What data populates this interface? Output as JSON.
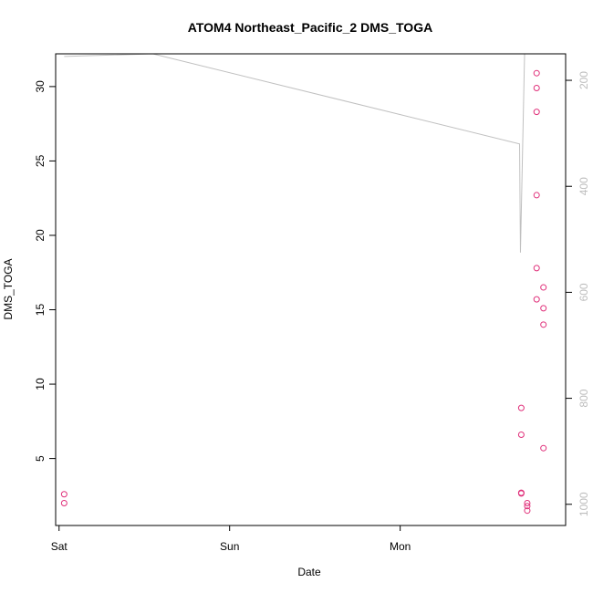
{
  "chart_data": {
    "type": "scatter",
    "title": "ATOM4 Northeast_Pacific_2 DMS_TOGA",
    "xlabel": "Date",
    "ylabel": "DMS_TOGA",
    "x_ticks": [
      "Sat",
      "Sun",
      "Mon"
    ],
    "y_ticks": [
      "5",
      "10",
      "15",
      "20",
      "25",
      "30"
    ],
    "y_ticks_values": [
      5,
      10,
      15,
      20,
      25,
      30
    ],
    "y_right_ticks": [
      "200",
      "400",
      "600",
      "800",
      "1000"
    ],
    "y_right_ticks_values": [
      200,
      400,
      600,
      800,
      1000
    ],
    "y_right_axis_reversed": true,
    "xlim_days": [
      -0.02,
      2.97
    ],
    "ylim": [
      0.5,
      32.2
    ],
    "y_right_lim": [
      1040,
      150
    ],
    "grid": false,
    "series": [
      {
        "type": "scatter",
        "color": "#e0307a",
        "points": [
          {
            "x": 0.03,
            "y": 2.6
          },
          {
            "x": 0.03,
            "y": 2.0
          },
          {
            "x": 2.71,
            "y": 8.4
          },
          {
            "x": 2.71,
            "y": 6.6
          },
          {
            "x": 2.71,
            "y": 2.7
          },
          {
            "x": 2.71,
            "y": 2.65
          },
          {
            "x": 2.745,
            "y": 2.0
          },
          {
            "x": 2.745,
            "y": 1.8
          },
          {
            "x": 2.745,
            "y": 1.5
          },
          {
            "x": 2.8,
            "y": 30.9
          },
          {
            "x": 2.8,
            "y": 29.9
          },
          {
            "x": 2.8,
            "y": 28.3
          },
          {
            "x": 2.8,
            "y": 22.7
          },
          {
            "x": 2.8,
            "y": 17.8
          },
          {
            "x": 2.8,
            "y": 15.7
          },
          {
            "x": 2.84,
            "y": 16.5
          },
          {
            "x": 2.84,
            "y": 15.1
          },
          {
            "x": 2.84,
            "y": 14.0
          },
          {
            "x": 2.84,
            "y": 5.7
          }
        ]
      },
      {
        "type": "line",
        "color": "#c0c0c0",
        "axis": "right",
        "points": [
          {
            "x": 0.03,
            "y": 155
          },
          {
            "x": 0.55,
            "y": 150
          },
          {
            "x": 2.7,
            "y": 320
          },
          {
            "x": 2.705,
            "y": 525
          },
          {
            "x": 2.73,
            "y": 140
          }
        ]
      }
    ]
  }
}
